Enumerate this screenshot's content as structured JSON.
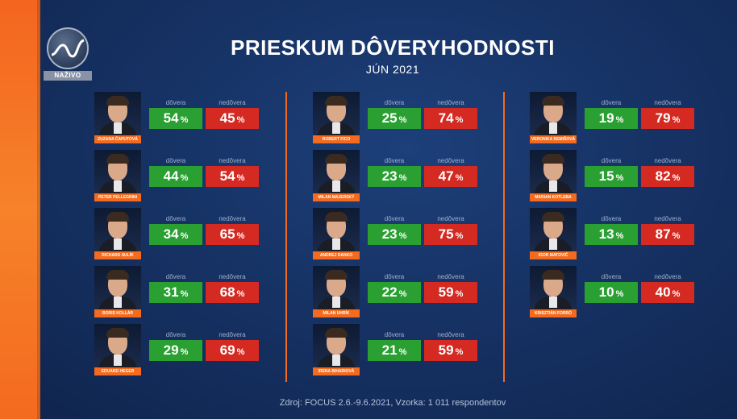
{
  "live_label": "NAŽIVO",
  "title": "PRIESKUM DÔVERYHODNOSTI",
  "subtitle": "JÚN 2021",
  "trust_label": "dôvera",
  "distrust_label": "nedôvera",
  "percent_sign": "%",
  "colors": {
    "trust": "#2aa032",
    "distrust": "#d42a22",
    "accent": "#f46a1f",
    "background": "#163264"
  },
  "people": [
    {
      "name": "ZUZANA ČAPUTOVÁ",
      "trust": "54",
      "distrust": "45"
    },
    {
      "name": "PETER PELLEGRINI",
      "trust": "44",
      "distrust": "54"
    },
    {
      "name": "RICHARD SULÍK",
      "trust": "34",
      "distrust": "65"
    },
    {
      "name": "BORIS KOLLÁR",
      "trust": "31",
      "distrust": "68"
    },
    {
      "name": "EDUARD HEGER",
      "trust": "29",
      "distrust": "69"
    },
    {
      "name": "ROBERT FICO",
      "trust": "25",
      "distrust": "74"
    },
    {
      "name": "MILAN MAJERSKÝ",
      "trust": "23",
      "distrust": "47"
    },
    {
      "name": "ANDREJ DANKO",
      "trust": "23",
      "distrust": "75"
    },
    {
      "name": "MILAN UHRÍK",
      "trust": "22",
      "distrust": "59"
    },
    {
      "name": "IRENA BIHARIOVÁ",
      "trust": "21",
      "distrust": "59"
    },
    {
      "name": "VERONIKA REMIŠOVÁ",
      "trust": "19",
      "distrust": "79"
    },
    {
      "name": "MARIAN KOTLEBA",
      "trust": "15",
      "distrust": "82"
    },
    {
      "name": "IGOR MATOVIČ",
      "trust": "13",
      "distrust": "87"
    },
    {
      "name": "KRISZTIÁN FORRÓ",
      "trust": "10",
      "distrust": "40"
    }
  ],
  "footer": "Zdroj: FOCUS 2.6.-9.6.2021, Vzorka: 1 011 respondentov"
}
